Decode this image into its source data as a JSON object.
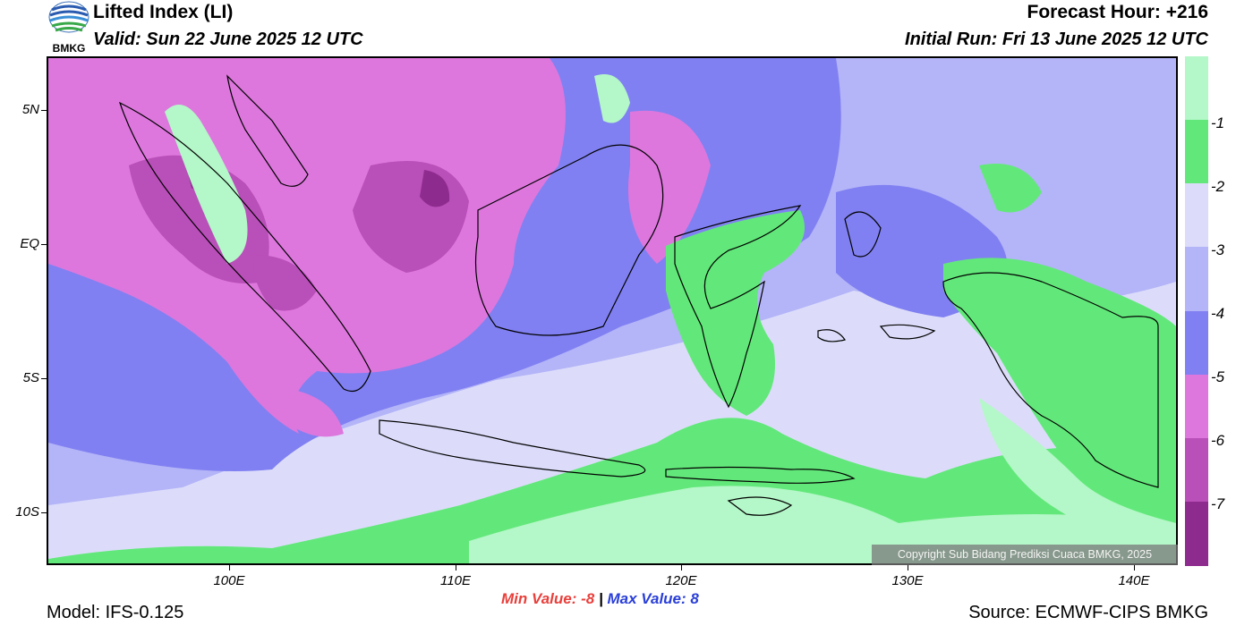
{
  "header": {
    "title": "Lifted Index (LI)",
    "valid": "Valid: Sun 22 June 2025 12 UTC",
    "forecast_hour": "Forecast Hour: +216",
    "initial_run": "Initial Run: Fri 13 June 2025 12 UTC",
    "logo_text": "BMKG"
  },
  "map": {
    "lat_labels": [
      "5N",
      "EQ",
      "5S",
      "10S"
    ],
    "lon_labels": [
      "100E",
      "110E",
      "120E",
      "130E",
      "140E"
    ],
    "colors": {
      "deep_magenta": "#8e2b8e",
      "dark_magenta": "#b94fb9",
      "magenta": "#dd77dd",
      "purple_blue": "#8080f2",
      "light_blue": "#b4b4f8",
      "pale_lavender": "#dcdcfa",
      "green": "#62e87a",
      "light_green": "#b4f7c8"
    }
  },
  "legend": {
    "labels": [
      "-1",
      "-2",
      "-3",
      "-4",
      "-5",
      "-6",
      "-7"
    ],
    "colors": [
      "#b4f7c8",
      "#62e87a",
      "#dcdcfa",
      "#b4b4f8",
      "#8080f2",
      "#dd77dd",
      "#b94fb9",
      "#8e2b8e"
    ]
  },
  "footer": {
    "min_label": "Min Value:",
    "min_value": "-8",
    "separator": "|",
    "max_label": "Max Value:",
    "max_value": "8",
    "model": "Model: IFS-0.125",
    "source": "Source: ECMWF-CIPS BMKG",
    "copyright": "Copyright Sub Bidang Prediksi Cuaca BMKG, 2025"
  }
}
